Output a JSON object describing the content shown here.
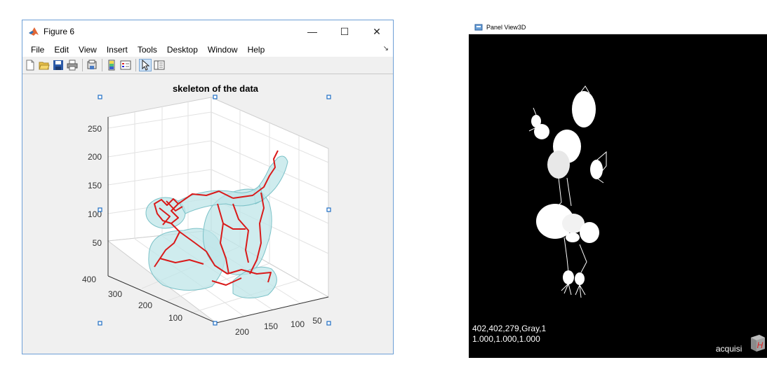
{
  "figure_window": {
    "title": "Figure 6",
    "controls": {
      "minimize": "—",
      "maximize": "☐",
      "close": "✕"
    },
    "menu": [
      "File",
      "Edit",
      "View",
      "Insert",
      "Tools",
      "Desktop",
      "Window",
      "Help"
    ],
    "toolbar_icons": [
      "new-figure-icon",
      "open-file-icon",
      "save-icon",
      "print-icon",
      "print-preview-icon",
      "colorbar-icon",
      "legend-icon",
      "pointer-icon",
      "property-editor-icon"
    ]
  },
  "plot": {
    "title": "skeleton of the data",
    "z_ticks": [
      "250",
      "200",
      "150",
      "100",
      "50"
    ],
    "axis_ticks_left": [
      "400",
      "300",
      "200",
      "100"
    ],
    "axis_ticks_right": [
      "200",
      "150",
      "100",
      "50"
    ],
    "surface_color": "#b8e3e6",
    "skeleton_color": "#d91a1a"
  },
  "panel3d": {
    "title": "Panel View3D",
    "info_line1": "402,402,279,Gray,1",
    "info_line2": "1.000,1.000,1.000",
    "corner_label": "acquisi",
    "cube_letter": "H"
  }
}
